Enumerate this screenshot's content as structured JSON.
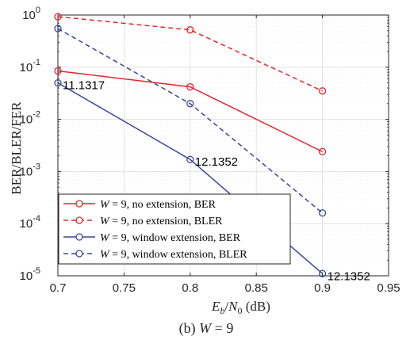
{
  "chart_data": {
    "type": "line",
    "caption": "(b) W = 9",
    "caption_parts": {
      "prefix": "(b) ",
      "var": "W",
      "rest": " = 9"
    },
    "xlabel_parts": {
      "var": "E",
      "sub1": "b",
      "slash": "/",
      "var2": "N",
      "sub2": "0",
      "unit": " (dB)"
    },
    "ylabel": "BER/BLER/FER",
    "xlim": [
      0.7,
      0.95
    ],
    "ylim_log10": [
      -5,
      0
    ],
    "yscale": "log",
    "x_ticks": [
      "0.7",
      "0.75",
      "0.8",
      "0.85",
      "0.9",
      "0.95"
    ],
    "y_ticks": [
      {
        "base": "10",
        "exp": "0"
      },
      {
        "base": "10",
        "exp": "-1"
      },
      {
        "base": "10",
        "exp": "-2"
      },
      {
        "base": "10",
        "exp": "-3"
      },
      {
        "base": "10",
        "exp": "-4"
      },
      {
        "base": "10",
        "exp": "-5"
      }
    ],
    "grid": true,
    "legend_position": "bottom-left",
    "series": [
      {
        "name_var": "W",
        "name": " = 9, no extension, BER",
        "color": "#e3262d",
        "dash": "solid",
        "x": [
          0.7,
          0.8,
          0.9
        ],
        "y": [
          0.085,
          0.042,
          0.0024
        ]
      },
      {
        "name_var": "W",
        "name": " = 9, no extension, BLER",
        "color": "#e3262d",
        "dash": "dashed",
        "x": [
          0.7,
          0.8,
          0.9
        ],
        "y": [
          0.93,
          0.52,
          0.035
        ]
      },
      {
        "name_var": "W",
        "name": " = 9, window extension, BER",
        "color": "#3c479a",
        "dash": "solid",
        "x": [
          0.7,
          0.8,
          0.9
        ],
        "y": [
          0.05,
          0.0017,
          1.1e-05
        ]
      },
      {
        "name_var": "W",
        "name": " = 9, window extension, BLER",
        "color": "#3c479a",
        "dash": "dashed",
        "x": [
          0.7,
          0.8,
          0.9
        ],
        "y": [
          0.55,
          0.02,
          0.00016
        ]
      }
    ],
    "annotations": [
      {
        "text": "11.1317",
        "x": 0.7,
        "y": 0.05
      },
      {
        "text": "12.1352",
        "x": 0.8,
        "y": 0.0017
      },
      {
        "text": "12.1352",
        "x": 0.9,
        "y": 1.1e-05
      }
    ]
  }
}
